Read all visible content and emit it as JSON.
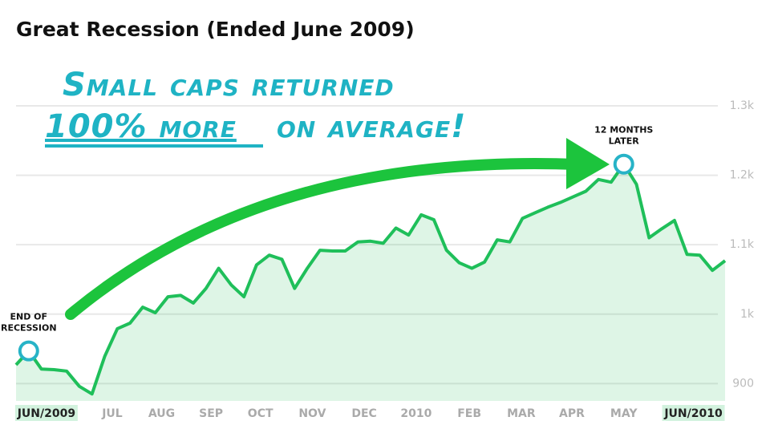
{
  "chart_data": {
    "type": "area_line",
    "title": "Great Recession (Ended June 2009)",
    "callout": {
      "line1": "Small caps returned",
      "emphasis": "100% more",
      "rest": "on average!"
    },
    "x": [
      0,
      1,
      2,
      3,
      4,
      5,
      6,
      7,
      8,
      9,
      10,
      11,
      12,
      13,
      14,
      15,
      16,
      17,
      18,
      19,
      20,
      21,
      22,
      23,
      24,
      25,
      26,
      27,
      28,
      29,
      30,
      31,
      32,
      33,
      34,
      35,
      36,
      37,
      38,
      39,
      40,
      41,
      42,
      43,
      44,
      45,
      46,
      47,
      48,
      49,
      50,
      51,
      52,
      53,
      54,
      55,
      56
    ],
    "values": [
      927,
      947,
      921,
      920,
      918,
      896,
      885,
      939,
      979,
      987,
      1010,
      1002,
      1025,
      1027,
      1016,
      1037,
      1066,
      1042,
      1025,
      1071,
      1085,
      1079,
      1037,
      1066,
      1092,
      1091,
      1091,
      1104,
      1105,
      1102,
      1124,
      1114,
      1143,
      1136,
      1092,
      1074,
      1066,
      1075,
      1107,
      1104,
      1138,
      1146,
      1154,
      1161,
      1169,
      1177,
      1194,
      1190,
      1216,
      1187,
      1110,
      1123,
      1135,
      1086,
      1085,
      1063,
      1077
    ],
    "color": "#1fbf5a",
    "marker_color": "#27b3c7",
    "xlim": [
      0,
      56
    ],
    "xticks": [
      {
        "value": 2.4,
        "label": "JUN/2009"
      },
      {
        "value": 7.6,
        "label": "JUL"
      },
      {
        "value": 11.5,
        "label": "AUG"
      },
      {
        "value": 15.4,
        "label": "SEP"
      },
      {
        "value": 19.3,
        "label": "OCT"
      },
      {
        "value": 23.4,
        "label": "NOV"
      },
      {
        "value": 27.5,
        "label": "DEC"
      },
      {
        "value": 31.6,
        "label": "2010"
      },
      {
        "value": 35.8,
        "label": "FEB"
      },
      {
        "value": 39.9,
        "label": "MAR"
      },
      {
        "value": 43.9,
        "label": "APR"
      },
      {
        "value": 48.0,
        "label": "MAY"
      },
      {
        "value": 53.5,
        "label": "JUN/2010"
      }
    ],
    "ylim": [
      875,
      1300
    ],
    "yticks": [
      900,
      {
        "value": 1000,
        "label": "1k"
      },
      {
        "value": 1100,
        "label": "1.1k"
      },
      {
        "value": 1200,
        "label": "1.2k"
      },
      {
        "value": 1300,
        "label": "1.3k"
      }
    ],
    "grid": true,
    "annotations": [
      {
        "x": 1,
        "lines": [
          "END OF",
          "RECESSION"
        ]
      },
      {
        "x": 48,
        "lines": [
          "12 MONTHS",
          "LATER"
        ]
      }
    ]
  }
}
